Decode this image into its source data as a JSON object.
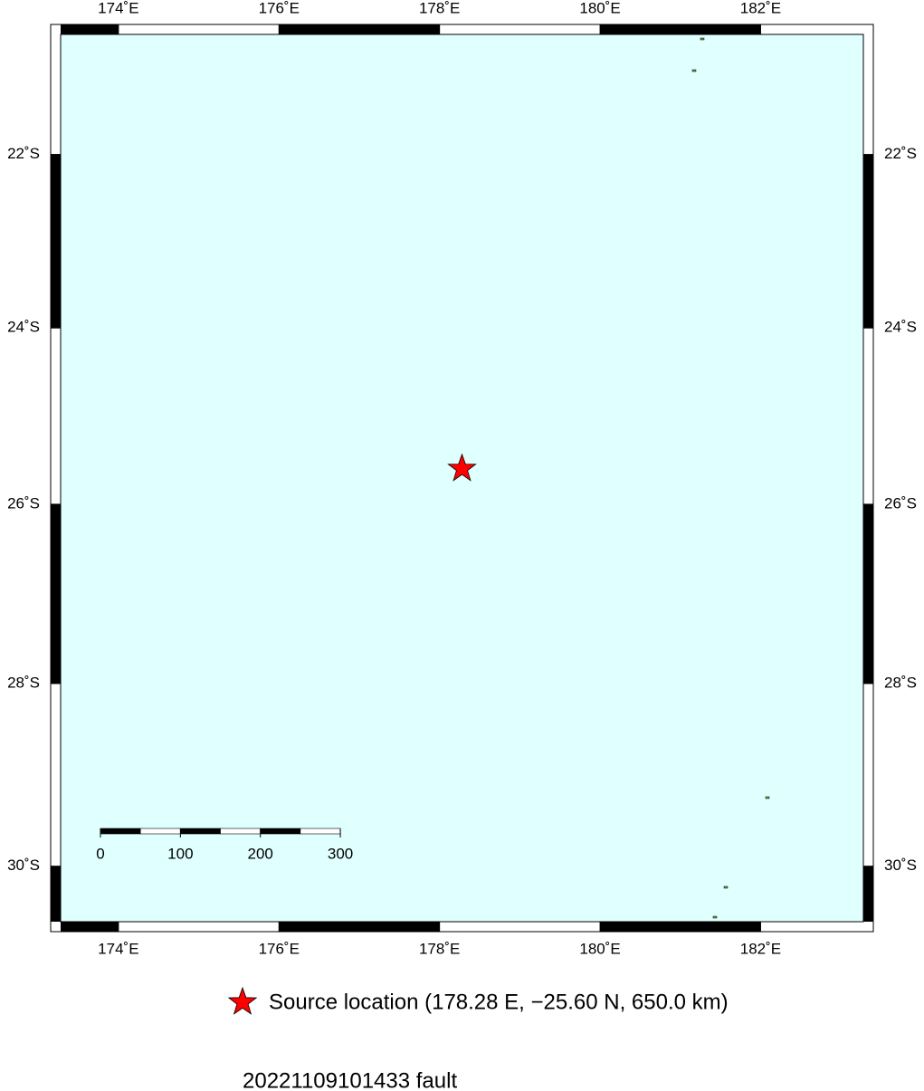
{
  "map": {
    "projection": "mercator",
    "xlim": [
      173.28,
      183.28
    ],
    "ylim": [
      -30.6,
      -20.6
    ],
    "xticks": [
      {
        "value": 174,
        "label": "174˚E"
      },
      {
        "value": 176,
        "label": "176˚E"
      },
      {
        "value": 178,
        "label": "178˚E"
      },
      {
        "value": 180,
        "label": "180˚E"
      },
      {
        "value": 182,
        "label": "182˚E"
      }
    ],
    "yticks": [
      {
        "value": -22,
        "label": "22˚S"
      },
      {
        "value": -24,
        "label": "24˚S"
      },
      {
        "value": -26,
        "label": "26˚S"
      },
      {
        "value": -28,
        "label": "28˚S"
      },
      {
        "value": -30,
        "label": "30˚S"
      }
    ],
    "water_color": "#e0ffff",
    "source": {
      "lon": 178.28,
      "lat": -25.6,
      "color": "#ff0000"
    },
    "scale_bar": {
      "ticks": [
        0,
        100,
        200,
        300
      ]
    }
  },
  "legend": {
    "label": "Source location (178.28 E, −25.60 N, 650.0 km)"
  },
  "title": "20221109101433 fault"
}
